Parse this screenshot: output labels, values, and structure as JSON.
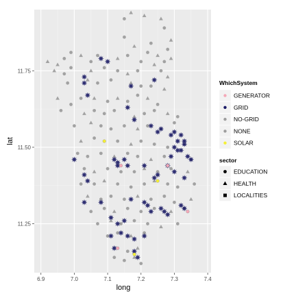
{
  "chart_data": {
    "type": "scatter",
    "xlabel": "long",
    "ylabel": "lat",
    "xlim": [
      6.88,
      7.41
    ],
    "ylim": [
      11.09,
      11.95
    ],
    "x_ticks": [
      6.9,
      7.0,
      7.1,
      7.2,
      7.3,
      7.4
    ],
    "x_tick_labels": [
      "6.9",
      "7.0",
      "7.1",
      "7.2",
      "7.3",
      "7.4"
    ],
    "y_ticks": [
      11.25,
      11.5,
      11.75
    ],
    "y_tick_labels": [
      "11.25",
      "11.50",
      "11.75"
    ],
    "grid": true,
    "legend_position": "right",
    "legends": [
      {
        "title": "WhichSystem",
        "kind": "color",
        "entries": [
          {
            "label": "GENERATOR",
            "color": "#f4a8b8"
          },
          {
            "label": "GRID",
            "color": "#1a1a66"
          },
          {
            "label": "NO-GRID",
            "color": "#9e9e9e"
          },
          {
            "label": "NONE",
            "color": "#9e9e9e"
          },
          {
            "label": "SOLAR",
            "color": "#f5f035"
          }
        ]
      },
      {
        "title": "sector",
        "kind": "shape",
        "entries": [
          {
            "label": "EDUCATION",
            "shape": "circle"
          },
          {
            "label": "HEALTH",
            "shape": "triangle"
          },
          {
            "label": "LOCALITIES",
            "shape": "square"
          }
        ]
      }
    ],
    "series": [
      {
        "name": "NONE",
        "color": "#9e9e9e",
        "points": [
          [
            7.17,
            11.94,
            "t"
          ],
          [
            7.21,
            11.93,
            "t"
          ],
          [
            7.15,
            11.92,
            "c"
          ],
          [
            7.26,
            11.92,
            "t"
          ],
          [
            7.27,
            11.89,
            "c"
          ],
          [
            7.15,
            11.86,
            "c"
          ],
          [
            7.18,
            11.83,
            "t"
          ],
          [
            7.23,
            11.84,
            "c"
          ],
          [
            7.29,
            11.85,
            "t"
          ],
          [
            7.22,
            11.81,
            "c"
          ],
          [
            7.25,
            11.8,
            "t"
          ],
          [
            7.28,
            11.82,
            "c"
          ],
          [
            6.92,
            11.78,
            "t"
          ],
          [
            6.95,
            11.77,
            "t"
          ],
          [
            6.97,
            11.79,
            "c"
          ],
          [
            6.99,
            11.81,
            "c"
          ],
          [
            7.02,
            11.8,
            "t"
          ],
          [
            7.05,
            11.78,
            "c"
          ],
          [
            7.07,
            11.8,
            "c"
          ],
          [
            7.13,
            11.79,
            "t"
          ],
          [
            7.16,
            11.8,
            "c"
          ],
          [
            7.2,
            11.78,
            "c"
          ],
          [
            7.24,
            11.77,
            "t"
          ],
          [
            7.27,
            11.78,
            "c"
          ],
          [
            7.29,
            11.79,
            "t"
          ],
          [
            6.94,
            11.75,
            "t"
          ],
          [
            6.97,
            11.74,
            "c"
          ],
          [
            6.99,
            11.76,
            "c"
          ],
          [
            7.05,
            11.75,
            "t"
          ],
          [
            7.09,
            11.76,
            "c"
          ],
          [
            7.13,
            11.75,
            "c"
          ],
          [
            7.16,
            11.74,
            "t"
          ],
          [
            7.19,
            11.75,
            "c"
          ],
          [
            7.26,
            11.75,
            "c"
          ],
          [
            7.28,
            11.73,
            "t"
          ],
          [
            6.98,
            11.71,
            "c"
          ],
          [
            7.04,
            11.72,
            "t"
          ],
          [
            7.07,
            11.71,
            "c"
          ],
          [
            7.11,
            11.72,
            "c"
          ],
          [
            7.17,
            11.71,
            "t"
          ],
          [
            7.2,
            11.7,
            "c"
          ],
          [
            7.23,
            11.7,
            "c"
          ],
          [
            7.27,
            11.69,
            "t"
          ],
          [
            6.95,
            11.66,
            "t"
          ],
          [
            6.99,
            11.64,
            "c"
          ],
          [
            7.02,
            11.66,
            "c"
          ],
          [
            7.06,
            11.66,
            "t"
          ],
          [
            7.1,
            11.65,
            "c"
          ],
          [
            7.13,
            11.66,
            "t"
          ],
          [
            7.16,
            11.65,
            "c"
          ],
          [
            7.19,
            11.67,
            "c"
          ],
          [
            7.22,
            11.66,
            "t"
          ],
          [
            7.25,
            11.64,
            "c"
          ],
          [
            6.96,
            11.62,
            "c"
          ],
          [
            7.03,
            11.61,
            "t"
          ],
          [
            7.06,
            11.62,
            "c"
          ],
          [
            7.09,
            11.61,
            "c"
          ],
          [
            7.12,
            11.62,
            "c"
          ],
          [
            7.18,
            11.6,
            "t"
          ],
          [
            7.21,
            11.61,
            "c"
          ],
          [
            7.24,
            11.62,
            "c"
          ],
          [
            7.28,
            11.61,
            "t"
          ],
          [
            7.31,
            11.6,
            "c"
          ],
          [
            7.0,
            11.57,
            "c"
          ],
          [
            7.05,
            11.58,
            "t"
          ],
          [
            7.08,
            11.57,
            "c"
          ],
          [
            7.11,
            11.56,
            "c"
          ],
          [
            7.15,
            11.57,
            "c"
          ],
          [
            7.19,
            11.56,
            "t"
          ],
          [
            7.22,
            11.57,
            "c"
          ],
          [
            7.26,
            11.56,
            "c"
          ],
          [
            7.3,
            11.58,
            "c"
          ],
          [
            7.02,
            11.52,
            "t"
          ],
          [
            7.06,
            11.53,
            "c"
          ],
          [
            7.13,
            11.52,
            "c"
          ],
          [
            7.17,
            11.51,
            "t"
          ],
          [
            7.2,
            11.52,
            "c"
          ],
          [
            7.24,
            11.51,
            "c"
          ],
          [
            7.28,
            11.5,
            "c"
          ],
          [
            7.33,
            11.51,
            "t"
          ],
          [
            7.01,
            11.48,
            "c"
          ],
          [
            7.04,
            11.47,
            "c"
          ],
          [
            7.08,
            11.48,
            "c"
          ],
          [
            7.12,
            11.47,
            "t"
          ],
          [
            7.16,
            11.48,
            "c"
          ],
          [
            7.19,
            11.47,
            "c"
          ],
          [
            7.23,
            11.46,
            "t"
          ],
          [
            7.27,
            11.47,
            "c"
          ],
          [
            7.35,
            11.46,
            "c"
          ],
          [
            7.03,
            11.43,
            "c"
          ],
          [
            7.06,
            11.42,
            "t"
          ],
          [
            7.1,
            11.43,
            "c"
          ],
          [
            7.14,
            11.42,
            "c"
          ],
          [
            7.18,
            11.42,
            "c"
          ],
          [
            7.21,
            11.43,
            "t"
          ],
          [
            7.25,
            11.42,
            "c"
          ],
          [
            7.29,
            11.43,
            "c"
          ],
          [
            7.34,
            11.42,
            "t"
          ],
          [
            7.02,
            11.38,
            "c"
          ],
          [
            7.06,
            11.38,
            "c"
          ],
          [
            7.09,
            11.39,
            "t"
          ],
          [
            7.13,
            11.38,
            "c"
          ],
          [
            7.17,
            11.37,
            "c"
          ],
          [
            7.21,
            11.38,
            "c"
          ],
          [
            7.24,
            11.39,
            "t"
          ],
          [
            7.28,
            11.38,
            "c"
          ],
          [
            7.31,
            11.37,
            "c"
          ],
          [
            7.36,
            11.38,
            "c"
          ],
          [
            7.04,
            11.34,
            "t"
          ],
          [
            7.08,
            11.33,
            "c"
          ],
          [
            7.11,
            11.34,
            "c"
          ],
          [
            7.15,
            11.33,
            "c"
          ],
          [
            7.19,
            11.34,
            "t"
          ],
          [
            7.23,
            11.33,
            "c"
          ],
          [
            7.27,
            11.34,
            "c"
          ],
          [
            7.3,
            11.32,
            "c"
          ],
          [
            7.35,
            11.33,
            "t"
          ],
          [
            7.05,
            11.29,
            "c"
          ],
          [
            7.09,
            11.3,
            "c"
          ],
          [
            7.12,
            11.29,
            "t"
          ],
          [
            7.16,
            11.3,
            "c"
          ],
          [
            7.2,
            11.29,
            "c"
          ],
          [
            7.24,
            11.3,
            "c"
          ],
          [
            7.29,
            11.29,
            "t"
          ],
          [
            7.33,
            11.3,
            "c"
          ],
          [
            7.07,
            11.25,
            "c"
          ],
          [
            7.11,
            11.26,
            "t"
          ],
          [
            7.14,
            11.25,
            "c"
          ],
          [
            7.18,
            11.26,
            "c"
          ],
          [
            7.22,
            11.25,
            "c"
          ],
          [
            7.26,
            11.24,
            "t"
          ],
          [
            7.31,
            11.25,
            "c"
          ],
          [
            7.1,
            11.21,
            "c"
          ],
          [
            7.13,
            11.22,
            "c"
          ],
          [
            7.17,
            11.21,
            "t"
          ],
          [
            7.21,
            11.22,
            "c"
          ],
          [
            7.13,
            11.17,
            "c"
          ],
          [
            7.16,
            11.16,
            "c"
          ],
          [
            7.19,
            11.17,
            "t"
          ],
          [
            7.15,
            11.13,
            "c"
          ],
          [
            7.18,
            11.14,
            "t"
          ],
          [
            7.2,
            11.12,
            "c"
          ],
          [
            7.12,
            11.14,
            "c"
          ]
        ]
      },
      {
        "name": "GRID",
        "color": "#1a1a66",
        "points": [
          [
            7.08,
            11.79
          ],
          [
            7.1,
            11.78
          ],
          [
            7.03,
            11.73
          ],
          [
            7.03,
            11.71
          ],
          [
            7.17,
            11.7
          ],
          [
            7.24,
            11.72
          ],
          [
            7.04,
            11.67
          ],
          [
            7.16,
            11.63
          ],
          [
            7.18,
            11.59
          ],
          [
            7.23,
            11.57
          ],
          [
            7.25,
            11.55
          ],
          [
            7.26,
            11.56
          ],
          [
            7.29,
            11.54
          ],
          [
            7.3,
            11.55
          ],
          [
            7.31,
            11.52
          ],
          [
            7.32,
            11.54
          ],
          [
            7.33,
            11.51
          ],
          [
            7.3,
            11.5
          ],
          [
            7.31,
            11.49
          ],
          [
            7.29,
            11.47
          ],
          [
            7.34,
            11.47
          ],
          [
            7.35,
            11.46
          ],
          [
            7.32,
            11.49
          ],
          [
            7.33,
            11.52
          ],
          [
            7.0,
            11.46
          ],
          [
            7.12,
            11.46
          ],
          [
            7.13,
            11.45
          ],
          [
            7.15,
            11.46
          ],
          [
            7.13,
            11.44
          ],
          [
            7.16,
            11.44
          ],
          [
            7.03,
            11.41
          ],
          [
            7.04,
            11.39
          ],
          [
            7.21,
            11.44
          ],
          [
            7.24,
            11.4
          ],
          [
            7.25,
            11.41
          ],
          [
            7.28,
            11.44
          ],
          [
            7.3,
            11.42
          ],
          [
            7.33,
            11.4
          ],
          [
            7.03,
            11.32
          ],
          [
            7.08,
            11.32
          ],
          [
            7.17,
            11.33
          ],
          [
            7.21,
            11.32
          ],
          [
            7.22,
            11.31
          ],
          [
            7.27,
            11.29
          ],
          [
            7.28,
            11.28
          ],
          [
            7.32,
            11.31
          ],
          [
            7.33,
            11.3
          ],
          [
            7.11,
            11.27
          ],
          [
            7.15,
            11.26
          ],
          [
            7.13,
            11.25
          ],
          [
            7.11,
            11.21
          ],
          [
            7.14,
            11.22
          ],
          [
            7.16,
            11.21
          ],
          [
            7.18,
            11.2
          ],
          [
            7.21,
            11.21
          ],
          [
            7.12,
            11.17
          ],
          [
            7.18,
            11.16
          ],
          [
            7.19,
            11.14
          ],
          [
            7.23,
            11.29
          ],
          [
            7.26,
            11.3
          ]
        ]
      },
      {
        "name": "GENERATOR",
        "color": "#f4a8b8",
        "points": [
          [
            7.13,
            11.17
          ],
          [
            7.14,
            11.44
          ],
          [
            7.28,
            11.44
          ],
          [
            7.34,
            11.29
          ]
        ]
      },
      {
        "name": "SOLAR",
        "color": "#f5f035",
        "points": [
          [
            7.09,
            11.52
          ],
          [
            7.25,
            11.39
          ],
          [
            7.18,
            11.15
          ]
        ]
      }
    ]
  }
}
